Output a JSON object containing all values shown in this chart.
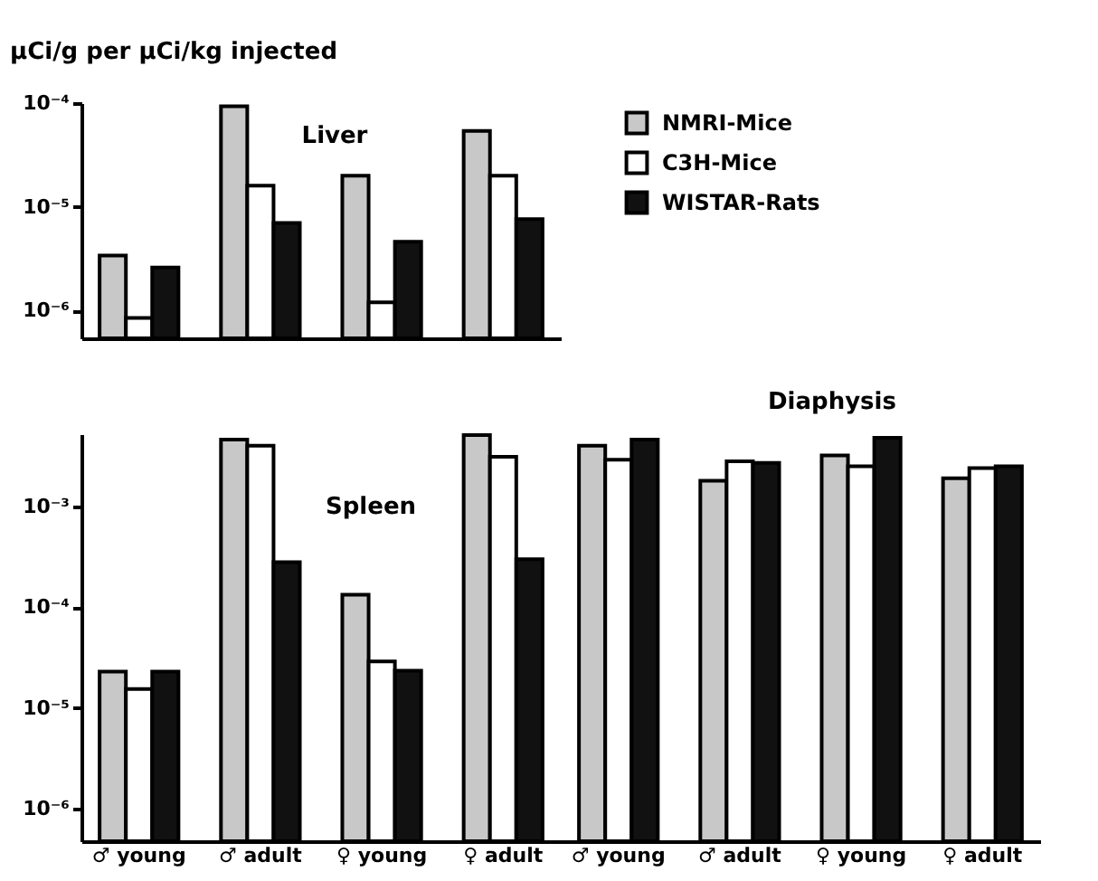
{
  "chart_data": [
    {
      "type": "bar",
      "title": "Liver",
      "ylabel": "μCi/g per μCi/kg injected",
      "categories": [
        null,
        null,
        null,
        null
      ],
      "log": true,
      "ylim": [
        5.4e-07,
        0.0001
      ],
      "yticks": [
        {
          "value": 1e-06,
          "label": "10⁻⁶"
        },
        {
          "value": 1e-05,
          "label": "10⁻⁵"
        },
        {
          "value": 0.0001,
          "label": "10⁻⁴"
        }
      ],
      "tick_labels": "y",
      "legend": "right",
      "series": [
        {
          "name": "NMRI-Mice",
          "color": "#c8c8c8",
          "values": [
            3.4e-06,
            9.3e-05,
            2e-05,
            5.4e-05
          ]
        },
        {
          "name": "C3H-Mice",
          "color": "#ffffff",
          "values": [
            8.5e-07,
            1.6e-05,
            1.2e-06,
            2e-05
          ]
        },
        {
          "name": "WISTAR-Rats",
          "color": "#111111",
          "values": [
            2.6e-06,
            7e-06,
            4.6e-06,
            7.6e-06
          ]
        }
      ]
    },
    {
      "type": "bar",
      "title": "Spleen",
      "categories": [
        "♂ young",
        "♂ adult",
        "♀ young",
        "♀ adult"
      ],
      "log": true,
      "ylim": [
        4.8e-07,
        0.0052
      ],
      "yticks": [
        {
          "value": 1e-06,
          "label": "10⁻⁶"
        },
        {
          "value": 1e-05,
          "label": "10⁻⁵"
        },
        {
          "value": 0.0001,
          "label": "10⁻⁴"
        },
        {
          "value": 0.001,
          "label": "10⁻³"
        }
      ],
      "series": [
        {
          "name": "NMRI-Mice",
          "color": "#c8c8c8",
          "values": [
            2.3e-05,
            0.0046,
            0.000133,
            0.0051
          ]
        },
        {
          "name": "C3H-Mice",
          "color": "#ffffff",
          "values": [
            1.55e-05,
            0.004,
            2.9e-05,
            0.0031
          ]
        },
        {
          "name": "WISTAR-Rats",
          "color": "#111111",
          "values": [
            2.3e-05,
            0.00028,
            2.35e-05,
            0.0003
          ]
        }
      ]
    },
    {
      "type": "bar",
      "title": "Diaphysis",
      "categories": [
        "♂ young",
        "♂ adult",
        "♀ young",
        "♀ adult"
      ],
      "log": true,
      "ylim": [
        4.8e-07,
        0.0052
      ],
      "tick_labels": "x",
      "series": [
        {
          "name": "NMRI-Mice",
          "color": "#c8c8c8",
          "values": [
            0.004,
            0.0018,
            0.0032,
            0.0019
          ]
        },
        {
          "name": "C3H-Mice",
          "color": "#ffffff",
          "values": [
            0.0029,
            0.0028,
            0.0025,
            0.0024
          ]
        },
        {
          "name": "WISTAR-Rats",
          "color": "#111111",
          "values": [
            0.0046,
            0.0027,
            0.0048,
            0.0025
          ]
        }
      ]
    }
  ]
}
